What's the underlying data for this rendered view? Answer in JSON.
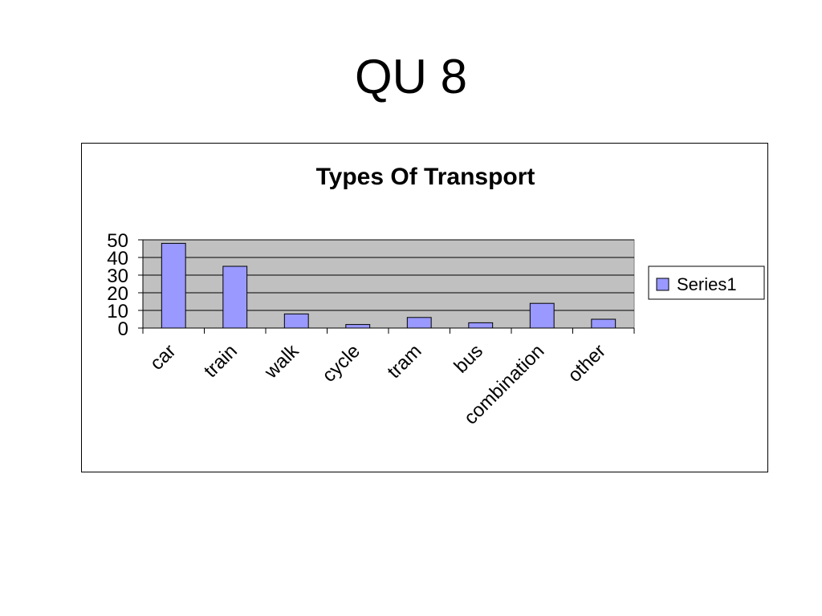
{
  "slide": {
    "title": "QU 8"
  },
  "chart_data": {
    "type": "bar",
    "title": "Types Of Transport",
    "categories": [
      "car",
      "train",
      "walk",
      "cycle",
      "tram",
      "bus",
      "combination",
      "other"
    ],
    "series": [
      {
        "name": "Series1",
        "values": [
          48,
          35,
          8,
          2,
          6,
          3,
          14,
          5
        ]
      }
    ],
    "ylim": [
      0,
      50
    ],
    "yticks": [
      0,
      10,
      20,
      30,
      40,
      50
    ],
    "xlabel": "",
    "ylabel": "",
    "grid": true,
    "legend": "right",
    "colors": {
      "bar": "#9999ff",
      "plot_bg": "#c0c0c0",
      "bar_stroke": "#000000"
    }
  }
}
